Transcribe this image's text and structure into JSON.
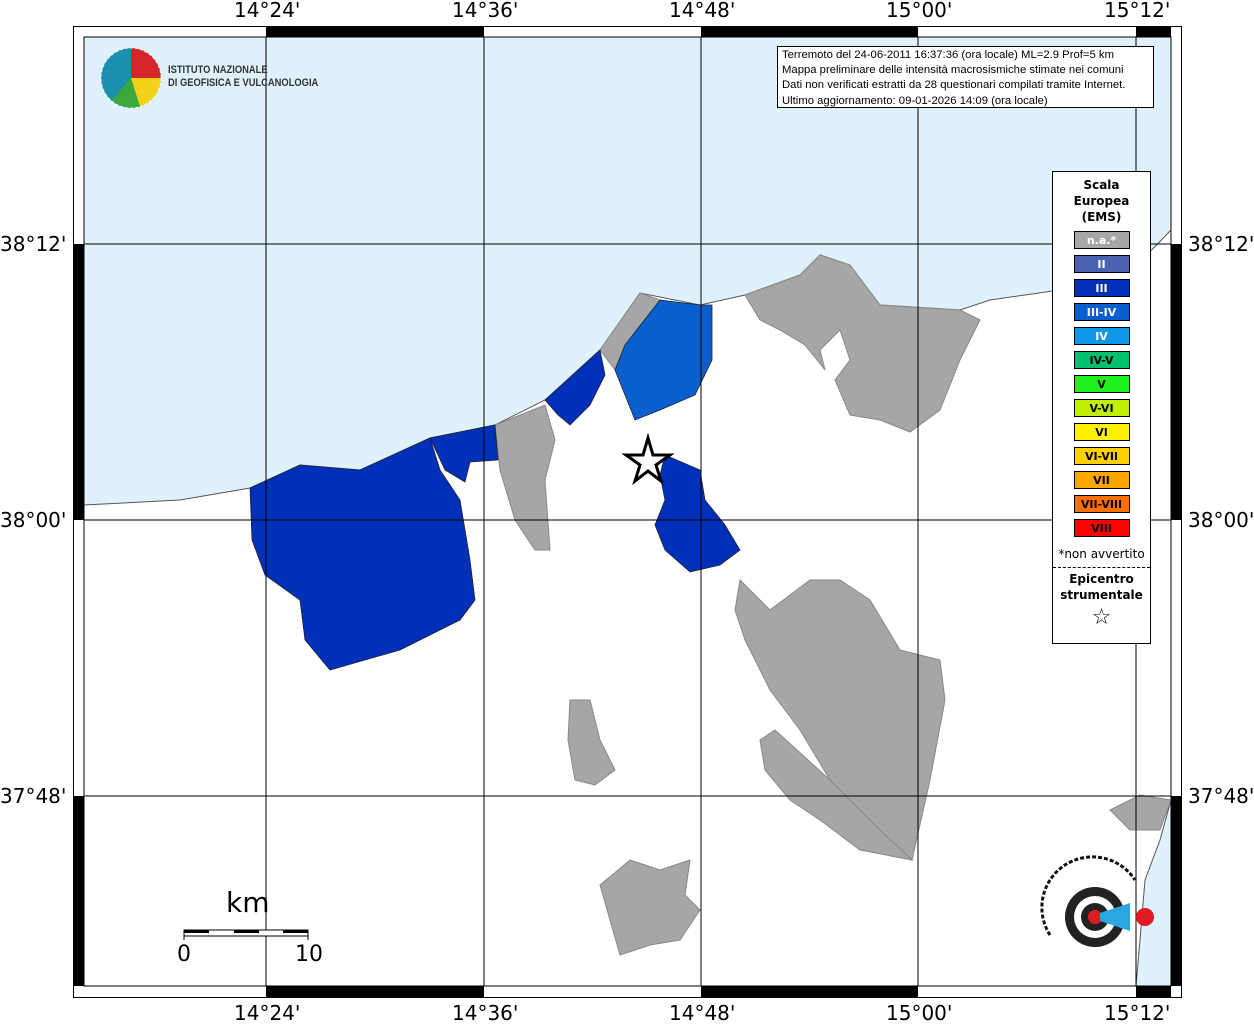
{
  "info_box": {
    "lines": [
      "Terremoto del 24-06-2011 16:37:36 (ora locale) ML=2.9 Prof=5 km",
      "Mappa preliminare delle intensità macrosismiche stimate nei comuni",
      "Dati non verificati estratti da 28 questionari compilati tramite Internet.",
      "Ultimo aggiornamento: 09-01-2026 14:09 (ora locale)"
    ]
  },
  "logo": {
    "line1": "ISTITUTO NAZIONALE",
    "line2": "DI GEOFISICA E VULCANOLOGIA"
  },
  "axes": {
    "lon_ticks": [
      "14°24'",
      "14°36'",
      "14°48'",
      "15°00'",
      "15°12'"
    ],
    "lat_ticks": [
      "38°12'",
      "38°00'",
      "37°48'"
    ]
  },
  "legend": {
    "title": [
      "Scala",
      "Europea",
      "(EMS)"
    ],
    "items": [
      {
        "label": "n.a.*",
        "color": "#a6a6a6",
        "text": "#ffffff"
      },
      {
        "label": "II",
        "color": "#4a63b0",
        "text": "#ffffff"
      },
      {
        "label": "III",
        "color": "#0030b8",
        "text": "#ffffff"
      },
      {
        "label": "III-IV",
        "color": "#0a5fcf",
        "text": "#ffffff"
      },
      {
        "label": "IV",
        "color": "#0f96e6",
        "text": "#ffffff"
      },
      {
        "label": "IV-V",
        "color": "#00c070",
        "text": "#000000"
      },
      {
        "label": "V",
        "color": "#20f020",
        "text": "#000000"
      },
      {
        "label": "V-VI",
        "color": "#c0f000",
        "text": "#000000"
      },
      {
        "label": "VI",
        "color": "#fff000",
        "text": "#000000"
      },
      {
        "label": "VI-VII",
        "color": "#ffd000",
        "text": "#000000"
      },
      {
        "label": "VII",
        "color": "#ffa500",
        "text": "#000000"
      },
      {
        "label": "VII-VIII",
        "color": "#ff7000",
        "text": "#000000"
      },
      {
        "label": "VIII",
        "color": "#ff0000",
        "text": "#000000"
      }
    ],
    "note": "*non avvertito",
    "epicentre": [
      "Epicentro",
      "strumentale"
    ],
    "epicentre_symbol": "☆"
  },
  "scale_bar": {
    "unit": "km",
    "min": "0",
    "max": "10"
  },
  "site_logo": "www.haisentitoilterremoto.it",
  "colors": {
    "sea": "#dff1fc",
    "na": "#a6a6a6",
    "iii": "#0030b8",
    "iii_iv": "#0a5fcf"
  }
}
